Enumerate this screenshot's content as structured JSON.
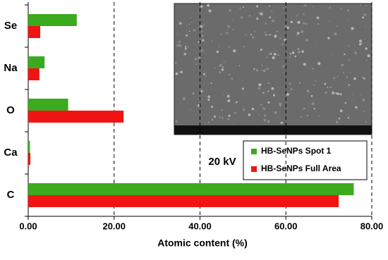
{
  "chart_data": {
    "type": "bar",
    "orientation": "horizontal",
    "categories": [
      "Se",
      "Na",
      "O",
      "Ca",
      "C"
    ],
    "series": [
      {
        "name": "HB-SeNPs Spot 1",
        "color": "#3caa1e",
        "values": [
          11.3,
          3.8,
          9.3,
          0.4,
          75.8
        ]
      },
      {
        "name": "HB-SeNPs Full Area",
        "color": "#f01414",
        "values": [
          2.8,
          2.6,
          22.2,
          0.5,
          72.3
        ]
      }
    ],
    "xlabel": "Atomic content (%)",
    "xlim": [
      0,
      80
    ],
    "xticks": [
      {
        "value": 0,
        "label": "0.00"
      },
      {
        "value": 20,
        "label": "20.00"
      },
      {
        "value": 40,
        "label": "40.00"
      },
      {
        "value": 60,
        "label": "60.00"
      },
      {
        "value": 80,
        "label": "80.00"
      }
    ],
    "grid": true,
    "annotation": "20 kV"
  }
}
